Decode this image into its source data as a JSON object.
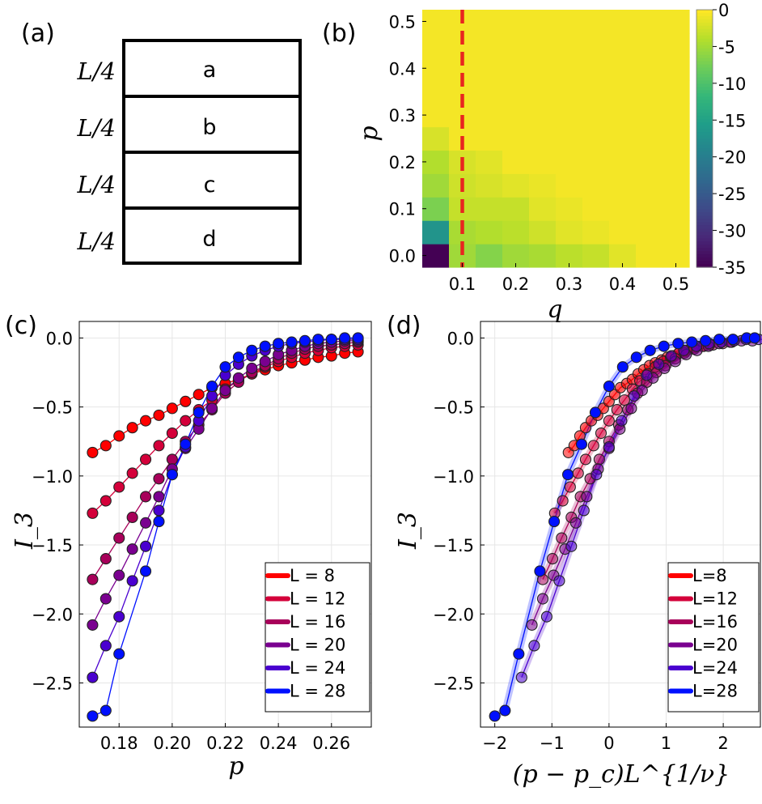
{
  "panel_labels": {
    "a": "(a)",
    "b": "(b)",
    "c": "(c)",
    "d": "(d)"
  },
  "panel_a": {
    "regions": [
      "a",
      "b",
      "c",
      "d"
    ],
    "side_labels": [
      "L/4",
      "L/4",
      "L/4",
      "L/4"
    ]
  },
  "colors": {
    "series": [
      "#ff0000",
      "#d4003a",
      "#a8005a",
      "#7a0090",
      "#4a00d0",
      "#0010ff"
    ],
    "dashed_line": "#e8251f",
    "grid": "#e6e6e6"
  },
  "chart_data": [
    {
      "id": "b",
      "type": "heatmap",
      "xlabel": "q",
      "ylabel": "p",
      "xticks": [
        "0.1",
        "0.2",
        "0.3",
        "0.4",
        "0.5"
      ],
      "yticks": [
        "0.0",
        "0.1",
        "0.2",
        "0.3",
        "0.4",
        "0.5"
      ],
      "xlim": [
        0.025,
        0.525
      ],
      "ylim": [
        -0.025,
        0.525
      ],
      "cell_size": 0.05,
      "x_centers": [
        0.05,
        0.1,
        0.15,
        0.2,
        0.25,
        0.3,
        0.35,
        0.4,
        0.45,
        0.5
      ],
      "y_centers": [
        0.0,
        0.05,
        0.1,
        0.15,
        0.2,
        0.25,
        0.3,
        0.35,
        0.4,
        0.45,
        0.5
      ],
      "values": [
        [
          -35,
          -5,
          -6.5,
          -5,
          -4.5,
          -3.5,
          -3,
          -1.5,
          -0.5,
          -0.5
        ],
        [
          -17,
          -4.5,
          -4,
          -3.5,
          -2.5,
          -1.5,
          -1,
          -0.5,
          -0.5,
          -0.5
        ],
        [
          -7,
          -3,
          -3,
          -3,
          -1.5,
          -1,
          -0.5,
          -0.5,
          -0.5,
          -0.5
        ],
        [
          -5,
          -2.5,
          -2,
          -1.5,
          -1,
          -0.5,
          -0.5,
          -0.5,
          -0.5,
          -0.5
        ],
        [
          -4,
          -2,
          -1.5,
          -0.5,
          -0.5,
          -0.5,
          -0.5,
          -0.5,
          -0.5,
          -0.5
        ],
        [
          -2,
          -0.5,
          -0.5,
          -0.5,
          -0.5,
          -0.5,
          -0.5,
          -0.5,
          -0.5,
          -0.5
        ],
        [
          -0.5,
          -0.5,
          -0.5,
          -0.5,
          -0.5,
          -0.5,
          -0.5,
          -0.5,
          -0.5,
          -0.5
        ],
        [
          -0.5,
          -0.5,
          -0.5,
          -0.5,
          -0.5,
          -0.5,
          -0.5,
          -0.5,
          -0.5,
          -0.5
        ],
        [
          -0.5,
          -0.5,
          -0.5,
          -0.5,
          -0.5,
          -0.5,
          -0.5,
          -0.5,
          -0.5,
          -0.5
        ],
        [
          -0.5,
          -0.5,
          -0.5,
          -0.5,
          -0.5,
          -0.5,
          -0.5,
          -0.5,
          -0.5,
          -0.5
        ],
        [
          -0.5,
          -0.5,
          -0.5,
          -0.5,
          -0.5,
          -0.5,
          -0.5,
          -0.5,
          -0.5,
          -0.5
        ]
      ],
      "colorbar": {
        "min": -35,
        "max": 0,
        "ticks": [
          "0",
          "-5",
          "-10",
          "-15",
          "-20",
          "-25",
          "-30",
          "-35"
        ],
        "colormap": "viridis"
      },
      "dashed_line_q": 0.1
    },
    {
      "id": "c",
      "type": "line",
      "xlabel": "p",
      "ylabel": "I_3",
      "xlim": [
        0.165,
        0.275
      ],
      "ylim": [
        -2.82,
        0.12
      ],
      "xticks": [
        "0.18",
        "0.20",
        "0.22",
        "0.24",
        "0.26"
      ],
      "xtick_values": [
        0.18,
        0.2,
        0.22,
        0.24,
        0.26
      ],
      "yticks": [
        "0.0",
        "−0.5",
        "−1.0",
        "−1.5",
        "−2.0",
        "−2.5"
      ],
      "ytick_values": [
        0.0,
        -0.5,
        -1.0,
        -1.5,
        -2.0,
        -2.5
      ],
      "legend_position": "bottom-right",
      "series": [
        {
          "name": "L = 8",
          "x": [
            0.17,
            0.175,
            0.18,
            0.185,
            0.19,
            0.195,
            0.2,
            0.205,
            0.21,
            0.215,
            0.22,
            0.225,
            0.23,
            0.235,
            0.24,
            0.245,
            0.25,
            0.255,
            0.26,
            0.265,
            0.27
          ],
          "y": [
            -0.83,
            -0.78,
            -0.71,
            -0.65,
            -0.6,
            -0.56,
            -0.51,
            -0.46,
            -0.41,
            -0.36,
            -0.33,
            -0.3,
            -0.26,
            -0.23,
            -0.2,
            -0.18,
            -0.16,
            -0.14,
            -0.13,
            -0.11,
            -0.1
          ]
        },
        {
          "name": "L = 12",
          "x": [
            0.17,
            0.175,
            0.18,
            0.185,
            0.19,
            0.195,
            0.2,
            0.205,
            0.21,
            0.215,
            0.22,
            0.225,
            0.23,
            0.235,
            0.24,
            0.245,
            0.25,
            0.255,
            0.26,
            0.265,
            0.27
          ],
          "y": [
            -1.27,
            -1.18,
            -1.08,
            -0.98,
            -0.88,
            -0.78,
            -0.69,
            -0.6,
            -0.52,
            -0.45,
            -0.37,
            -0.31,
            -0.26,
            -0.21,
            -0.17,
            -0.14,
            -0.11,
            -0.09,
            -0.07,
            -0.06,
            -0.05
          ]
        },
        {
          "name": "L = 16",
          "x": [
            0.17,
            0.175,
            0.18,
            0.185,
            0.19,
            0.195,
            0.2,
            0.205,
            0.21,
            0.215,
            0.22,
            0.225,
            0.23,
            0.235,
            0.24,
            0.245,
            0.25,
            0.255,
            0.26,
            0.265,
            0.27
          ],
          "y": [
            -1.75,
            -1.6,
            -1.45,
            -1.3,
            -1.15,
            -1.02,
            -0.88,
            -0.75,
            -0.63,
            -0.52,
            -0.4,
            -0.32,
            -0.25,
            -0.2,
            -0.15,
            -0.11,
            -0.08,
            -0.06,
            -0.05,
            -0.04,
            -0.03
          ]
        },
        {
          "name": "L = 20",
          "x": [
            0.17,
            0.175,
            0.18,
            0.185,
            0.19,
            0.195,
            0.2,
            0.205,
            0.21,
            0.215,
            0.22,
            0.225,
            0.23,
            0.235,
            0.24,
            0.245,
            0.25,
            0.255,
            0.26,
            0.265,
            0.27
          ],
          "y": [
            -2.08,
            -1.89,
            -1.72,
            -1.53,
            -1.34,
            -1.15,
            -0.95,
            -0.8,
            -0.66,
            -0.51,
            -0.38,
            -0.29,
            -0.22,
            -0.17,
            -0.12,
            -0.09,
            -0.06,
            -0.04,
            -0.03,
            -0.02,
            -0.02
          ]
        },
        {
          "name": "L = 24",
          "x": [
            0.17,
            0.175,
            0.18,
            0.185,
            0.19,
            0.195,
            0.2,
            0.205,
            0.21,
            0.215,
            0.22,
            0.225,
            0.23,
            0.235,
            0.24,
            0.245,
            0.25,
            0.255,
            0.26,
            0.265,
            0.27
          ],
          "y": [
            -2.46,
            -2.23,
            -2.02,
            -1.76,
            -1.51,
            -1.25,
            -0.99,
            -0.79,
            -0.6,
            -0.42,
            -0.27,
            -0.19,
            -0.13,
            -0.09,
            -0.06,
            -0.04,
            -0.03,
            -0.02,
            -0.01,
            -0.01,
            -0.01
          ]
        },
        {
          "name": "L = 28",
          "x": [
            0.17,
            0.175,
            0.18,
            0.19,
            0.195,
            0.2,
            0.205,
            0.21,
            0.215,
            0.22,
            0.225,
            0.23,
            0.235,
            0.24,
            0.245,
            0.25,
            0.255,
            0.26,
            0.265,
            0.27
          ],
          "y": [
            -2.74,
            -2.7,
            -2.29,
            -1.69,
            -1.33,
            -0.99,
            -0.77,
            -0.54,
            -0.35,
            -0.21,
            -0.14,
            -0.09,
            -0.06,
            -0.04,
            -0.03,
            -0.02,
            -0.01,
            -0.01,
            0.0,
            0.0
          ]
        }
      ]
    },
    {
      "id": "d",
      "type": "scatter",
      "xlabel": "(p − p_c)L^{1/ν}",
      "ylabel": "I_3",
      "xlim": [
        -2.25,
        2.65
      ],
      "ylim": [
        -2.82,
        0.12
      ],
      "xticks": [
        "−2",
        "−1",
        "0",
        "1",
        "2"
      ],
      "xtick_values": [
        -2,
        -1,
        0,
        1,
        2
      ],
      "yticks": [
        "0.0",
        "−0.5",
        "−1.0",
        "−1.5",
        "−2.0",
        "−2.5"
      ],
      "ytick_values": [
        0.0,
        -0.5,
        -1.0,
        -1.5,
        -2.0,
        -2.5
      ],
      "legend_position": "bottom-right",
      "series": [
        {
          "name": "L=8",
          "x": [
            -0.71,
            -0.61,
            -0.51,
            -0.41,
            -0.31,
            -0.2,
            -0.1,
            0.0,
            0.1,
            0.2,
            0.31,
            0.41,
            0.51,
            0.61,
            0.71,
            0.81,
            0.92,
            1.02,
            1.12,
            1.22,
            1.32
          ],
          "y": [
            -0.83,
            -0.78,
            -0.71,
            -0.65,
            -0.6,
            -0.56,
            -0.51,
            -0.46,
            -0.41,
            -0.36,
            -0.33,
            -0.3,
            -0.26,
            -0.23,
            -0.2,
            -0.18,
            -0.16,
            -0.14,
            -0.13,
            -0.11,
            -0.1
          ]
        },
        {
          "name": "L=12",
          "x": [
            -0.95,
            -0.81,
            -0.68,
            -0.54,
            -0.41,
            -0.27,
            -0.14,
            0.0,
            0.14,
            0.27,
            0.41,
            0.54,
            0.68,
            0.81,
            0.95,
            1.08,
            1.22,
            1.36,
            1.49,
            1.63,
            1.76
          ],
          "y": [
            -1.27,
            -1.18,
            -1.08,
            -0.98,
            -0.88,
            -0.78,
            -0.69,
            -0.6,
            -0.52,
            -0.45,
            -0.37,
            -0.31,
            -0.26,
            -0.21,
            -0.17,
            -0.14,
            -0.11,
            -0.09,
            -0.07,
            -0.06,
            -0.05
          ]
        },
        {
          "name": "L=16",
          "x": [
            -1.16,
            -0.99,
            -0.83,
            -0.66,
            -0.5,
            -0.33,
            -0.17,
            0.0,
            0.17,
            0.33,
            0.5,
            0.66,
            0.83,
            0.99,
            1.16,
            1.32,
            1.49,
            1.66,
            1.82,
            1.99,
            2.15
          ],
          "y": [
            -1.75,
            -1.6,
            -1.45,
            -1.3,
            -1.15,
            -1.02,
            -0.88,
            -0.75,
            -0.63,
            -0.52,
            -0.4,
            -0.32,
            -0.25,
            -0.2,
            -0.15,
            -0.11,
            -0.08,
            -0.06,
            -0.05,
            -0.04,
            -0.03
          ]
        },
        {
          "name": "L=20",
          "x": [
            -1.35,
            -1.16,
            -0.97,
            -0.77,
            -0.58,
            -0.39,
            -0.19,
            0.0,
            0.19,
            0.39,
            0.58,
            0.77,
            0.97,
            1.16,
            1.35,
            1.54,
            1.74,
            1.93,
            2.12,
            2.32,
            2.51
          ],
          "y": [
            -2.08,
            -1.89,
            -1.72,
            -1.53,
            -1.34,
            -1.15,
            -0.95,
            -0.8,
            -0.66,
            -0.51,
            -0.38,
            -0.29,
            -0.22,
            -0.17,
            -0.12,
            -0.09,
            -0.06,
            -0.04,
            -0.03,
            -0.02,
            -0.02
          ]
        },
        {
          "name": "L=24",
          "x": [
            -1.53,
            -1.31,
            -1.09,
            -0.87,
            -0.66,
            -0.44,
            -0.22,
            0.0,
            0.22,
            0.44,
            0.66,
            0.87,
            1.09,
            1.31,
            1.53,
            1.75,
            1.97,
            2.19,
            2.4,
            2.62,
            2.84
          ],
          "y": [
            -2.46,
            -2.23,
            -2.02,
            -1.76,
            -1.51,
            -1.25,
            -0.99,
            -0.79,
            -0.6,
            -0.42,
            -0.27,
            -0.19,
            -0.13,
            -0.09,
            -0.06,
            -0.04,
            -0.03,
            -0.02,
            -0.01,
            -0.01,
            -0.01
          ]
        },
        {
          "name": "L=28",
          "x": [
            -2.0,
            -1.82,
            -1.58,
            -1.21,
            -0.96,
            -0.72,
            -0.48,
            -0.24,
            0.0,
            0.24,
            0.48,
            0.72,
            0.96,
            1.21,
            1.45,
            1.69,
            1.93,
            2.17,
            2.41,
            2.55
          ],
          "y": [
            -2.74,
            -2.7,
            -2.29,
            -1.69,
            -1.33,
            -0.99,
            -0.77,
            -0.54,
            -0.35,
            -0.21,
            -0.14,
            -0.09,
            -0.06,
            -0.04,
            -0.03,
            -0.02,
            -0.01,
            -0.01,
            0.0,
            0.0
          ]
        }
      ]
    }
  ]
}
